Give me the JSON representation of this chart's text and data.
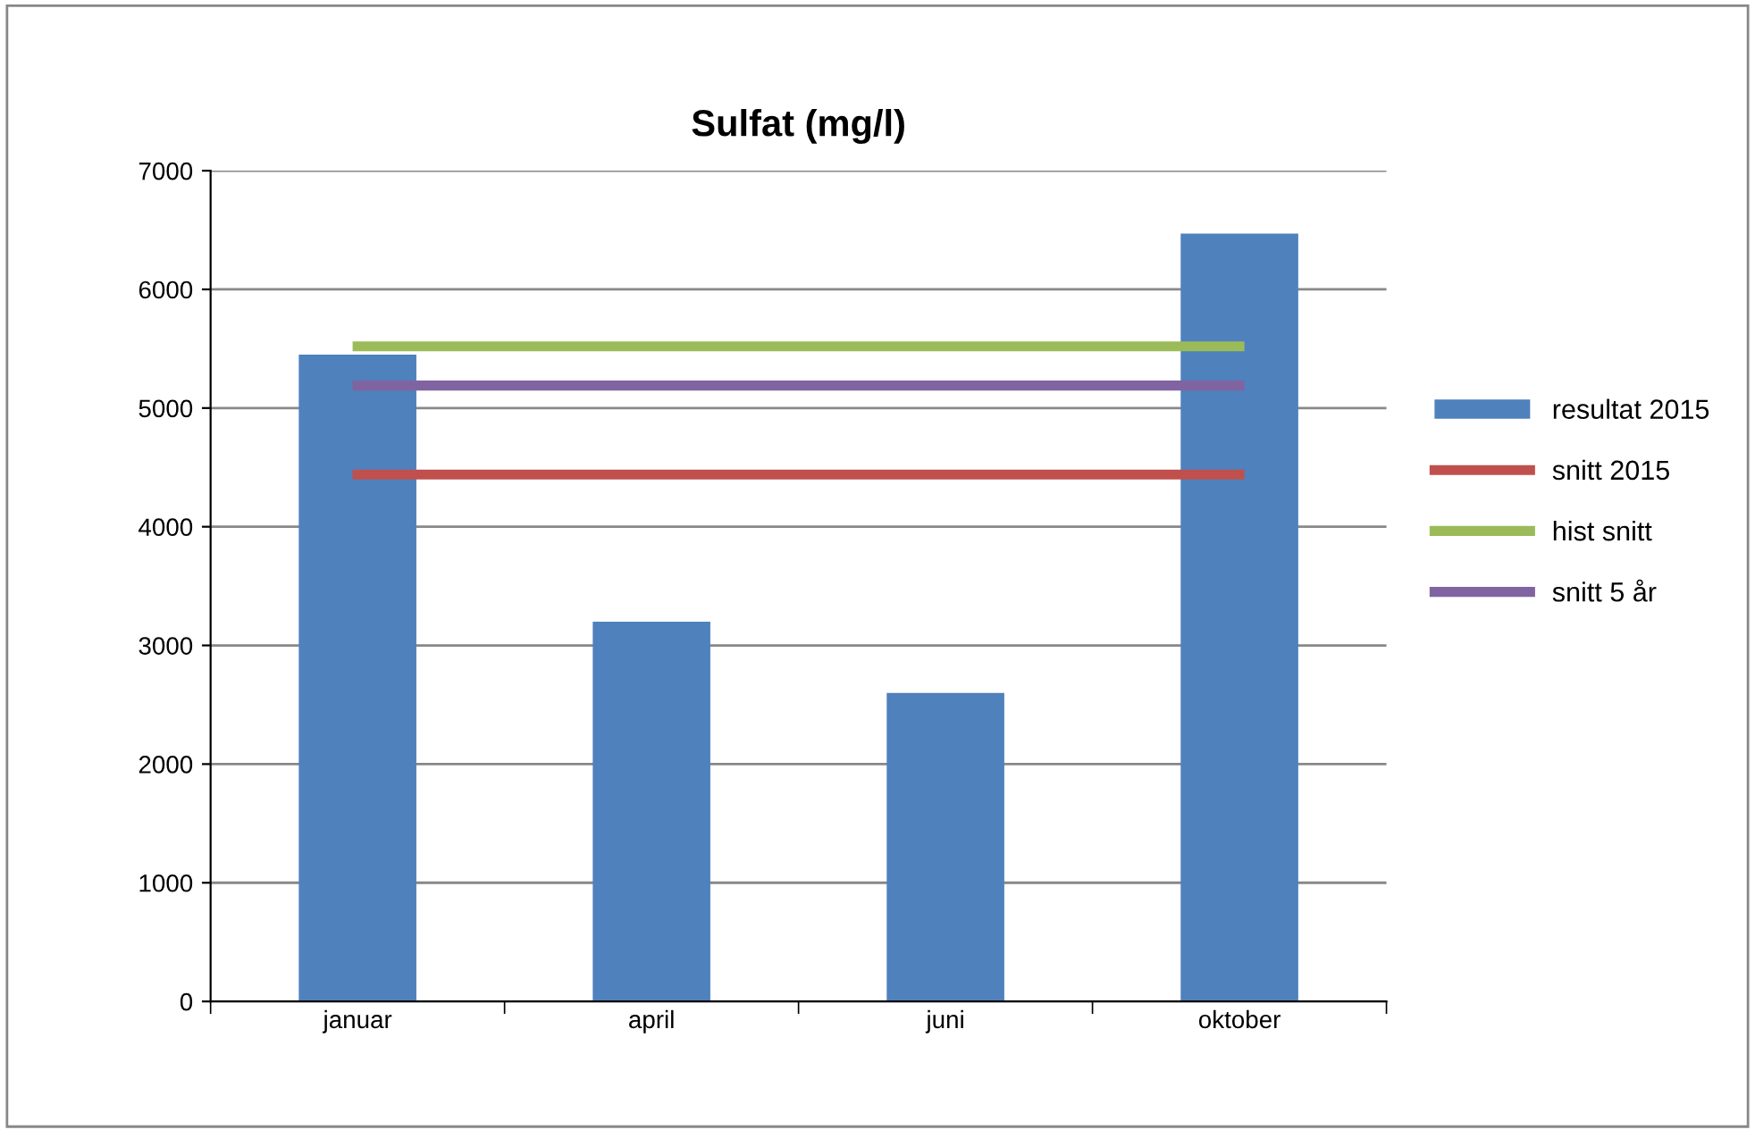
{
  "chart_data": {
    "type": "bar",
    "title": "Sulfat (mg/l)",
    "categories": [
      "januar",
      "april",
      "juni",
      "oktober"
    ],
    "series": [
      {
        "name": "resultat 2015",
        "color": "#4f81bd",
        "values": [
          5450,
          3200,
          2600,
          6470
        ]
      },
      {
        "name": "snitt 2015",
        "type": "line",
        "color": "#c0504d",
        "values": [
          4440,
          4440,
          4440,
          4440
        ]
      },
      {
        "name": "hist snitt",
        "type": "line",
        "color": "#9bbb59",
        "values": [
          5520,
          5520,
          5520,
          5520
        ]
      },
      {
        "name": "snitt 5 år",
        "type": "line",
        "color": "#8064a2",
        "values": [
          5190,
          5190,
          5190,
          5190
        ]
      }
    ],
    "ylim": [
      0,
      7000
    ],
    "yticks": [
      0,
      1000,
      2000,
      3000,
      4000,
      5000,
      6000,
      7000
    ],
    "grid": "y",
    "legend": "right",
    "marker": "none",
    "line_style": "solid"
  }
}
